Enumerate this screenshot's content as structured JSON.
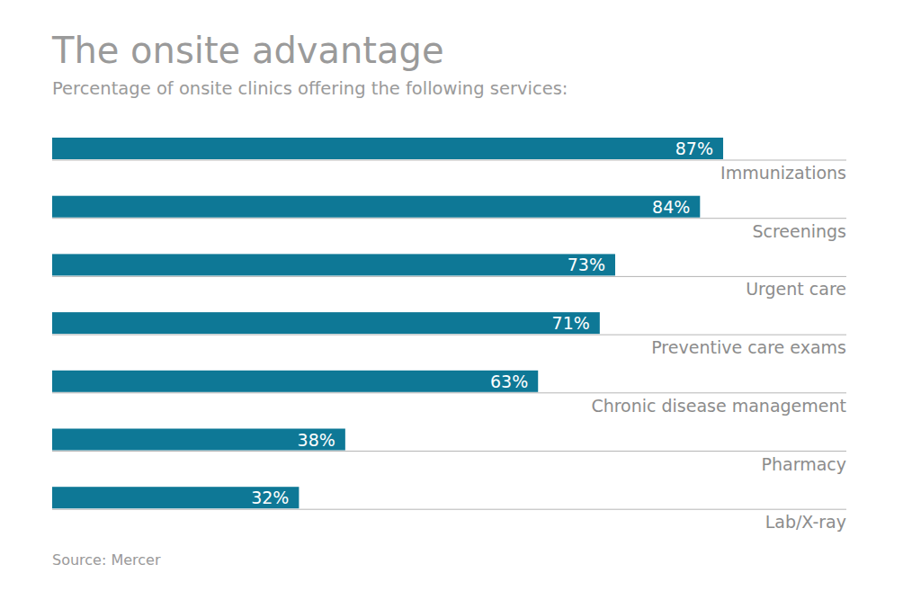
{
  "chart_data": {
    "type": "bar",
    "orientation": "horizontal",
    "title": "The onsite advantage",
    "subtitle": "Percentage of onsite clinics offering the following services:",
    "source": "Source: Mercer",
    "categories": [
      "Immunizations",
      "Screenings",
      "Urgent care",
      "Preventive care exams",
      "Chronic disease management",
      "Pharmacy",
      "Lab/X-ray"
    ],
    "values": [
      87,
      84,
      73,
      71,
      63,
      38,
      32
    ],
    "value_labels": [
      "87%",
      "84%",
      "73%",
      "71%",
      "63%",
      "38%",
      "32%"
    ],
    "color": "#0e7896",
    "xlim": [
      0,
      100
    ],
    "data_labels": true,
    "tick_labels": false,
    "grid": false
  }
}
